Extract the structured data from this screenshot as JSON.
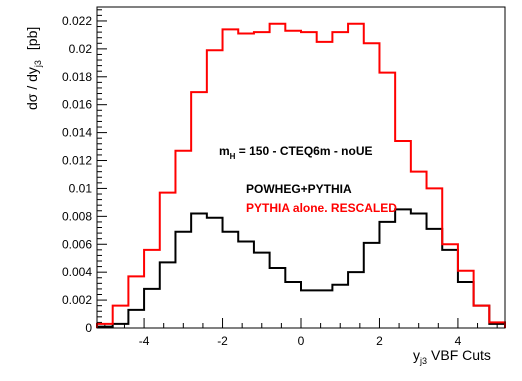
{
  "chart_data": {
    "type": "line",
    "step_histogram": true,
    "xlabel_main": "y",
    "xlabel_sub": "j3",
    "xlabel_suffix": "VBF Cuts",
    "ylabel_main": "dσ / dy",
    "ylabel_sub": "j3",
    "ylabel_units": "[pb]",
    "xlim": [
      -5.2,
      5.2
    ],
    "ylim": [
      0,
      0.023
    ],
    "x_ticks": [
      -4,
      -2,
      0,
      2,
      4
    ],
    "x_tick_labels": [
      "-4",
      "-2",
      "0",
      "2",
      "4"
    ],
    "y_ticks": [
      0,
      0.002,
      0.004,
      0.006,
      0.008,
      0.01,
      0.012,
      0.014,
      0.016,
      0.018,
      0.02,
      0.022
    ],
    "y_tick_labels": [
      "0",
      "0.002",
      "0.004",
      "0.006",
      "0.008",
      "0.01",
      "0.012",
      "0.014",
      "0.016",
      "0.018",
      "0.02",
      "0.022"
    ],
    "bin_edges": [
      -5.2,
      -4.8,
      -4.4,
      -4.0,
      -3.6,
      -3.2,
      -2.8,
      -2.4,
      -2.0,
      -1.6,
      -1.2,
      -0.8,
      -0.4,
      0.0,
      0.4,
      0.8,
      1.2,
      1.6,
      2.0,
      2.4,
      2.8,
      3.2,
      3.6,
      4.0,
      4.4,
      4.8,
      5.2
    ],
    "annotation_main": "m",
    "annotation_sub": "H",
    "annotation_rest": " = 150 - CTEQ6m - noUE",
    "series": [
      {
        "name": "POWHEG+PYTHIA",
        "color": "#000000",
        "values": [
          0.0001,
          0.0003,
          0.0013,
          0.0028,
          0.0047,
          0.0069,
          0.0082,
          0.0079,
          0.0069,
          0.0062,
          0.0054,
          0.0043,
          0.0033,
          0.0027,
          0.0027,
          0.0031,
          0.004,
          0.0061,
          0.0076,
          0.0085,
          0.0082,
          0.0071,
          0.0056,
          0.0033,
          0.0016,
          0.0003
        ]
      },
      {
        "name": "PYTHIA alone. RESCALED",
        "color": "#ff0000",
        "values": [
          0.0003,
          0.0016,
          0.0037,
          0.0056,
          0.0097,
          0.0127,
          0.0169,
          0.0199,
          0.0214,
          0.0211,
          0.0212,
          0.0218,
          0.0213,
          0.0212,
          0.0205,
          0.0212,
          0.0218,
          0.0204,
          0.0183,
          0.0134,
          0.0112,
          0.01,
          0.006,
          0.0041,
          0.0016,
          0.0004
        ]
      }
    ]
  }
}
